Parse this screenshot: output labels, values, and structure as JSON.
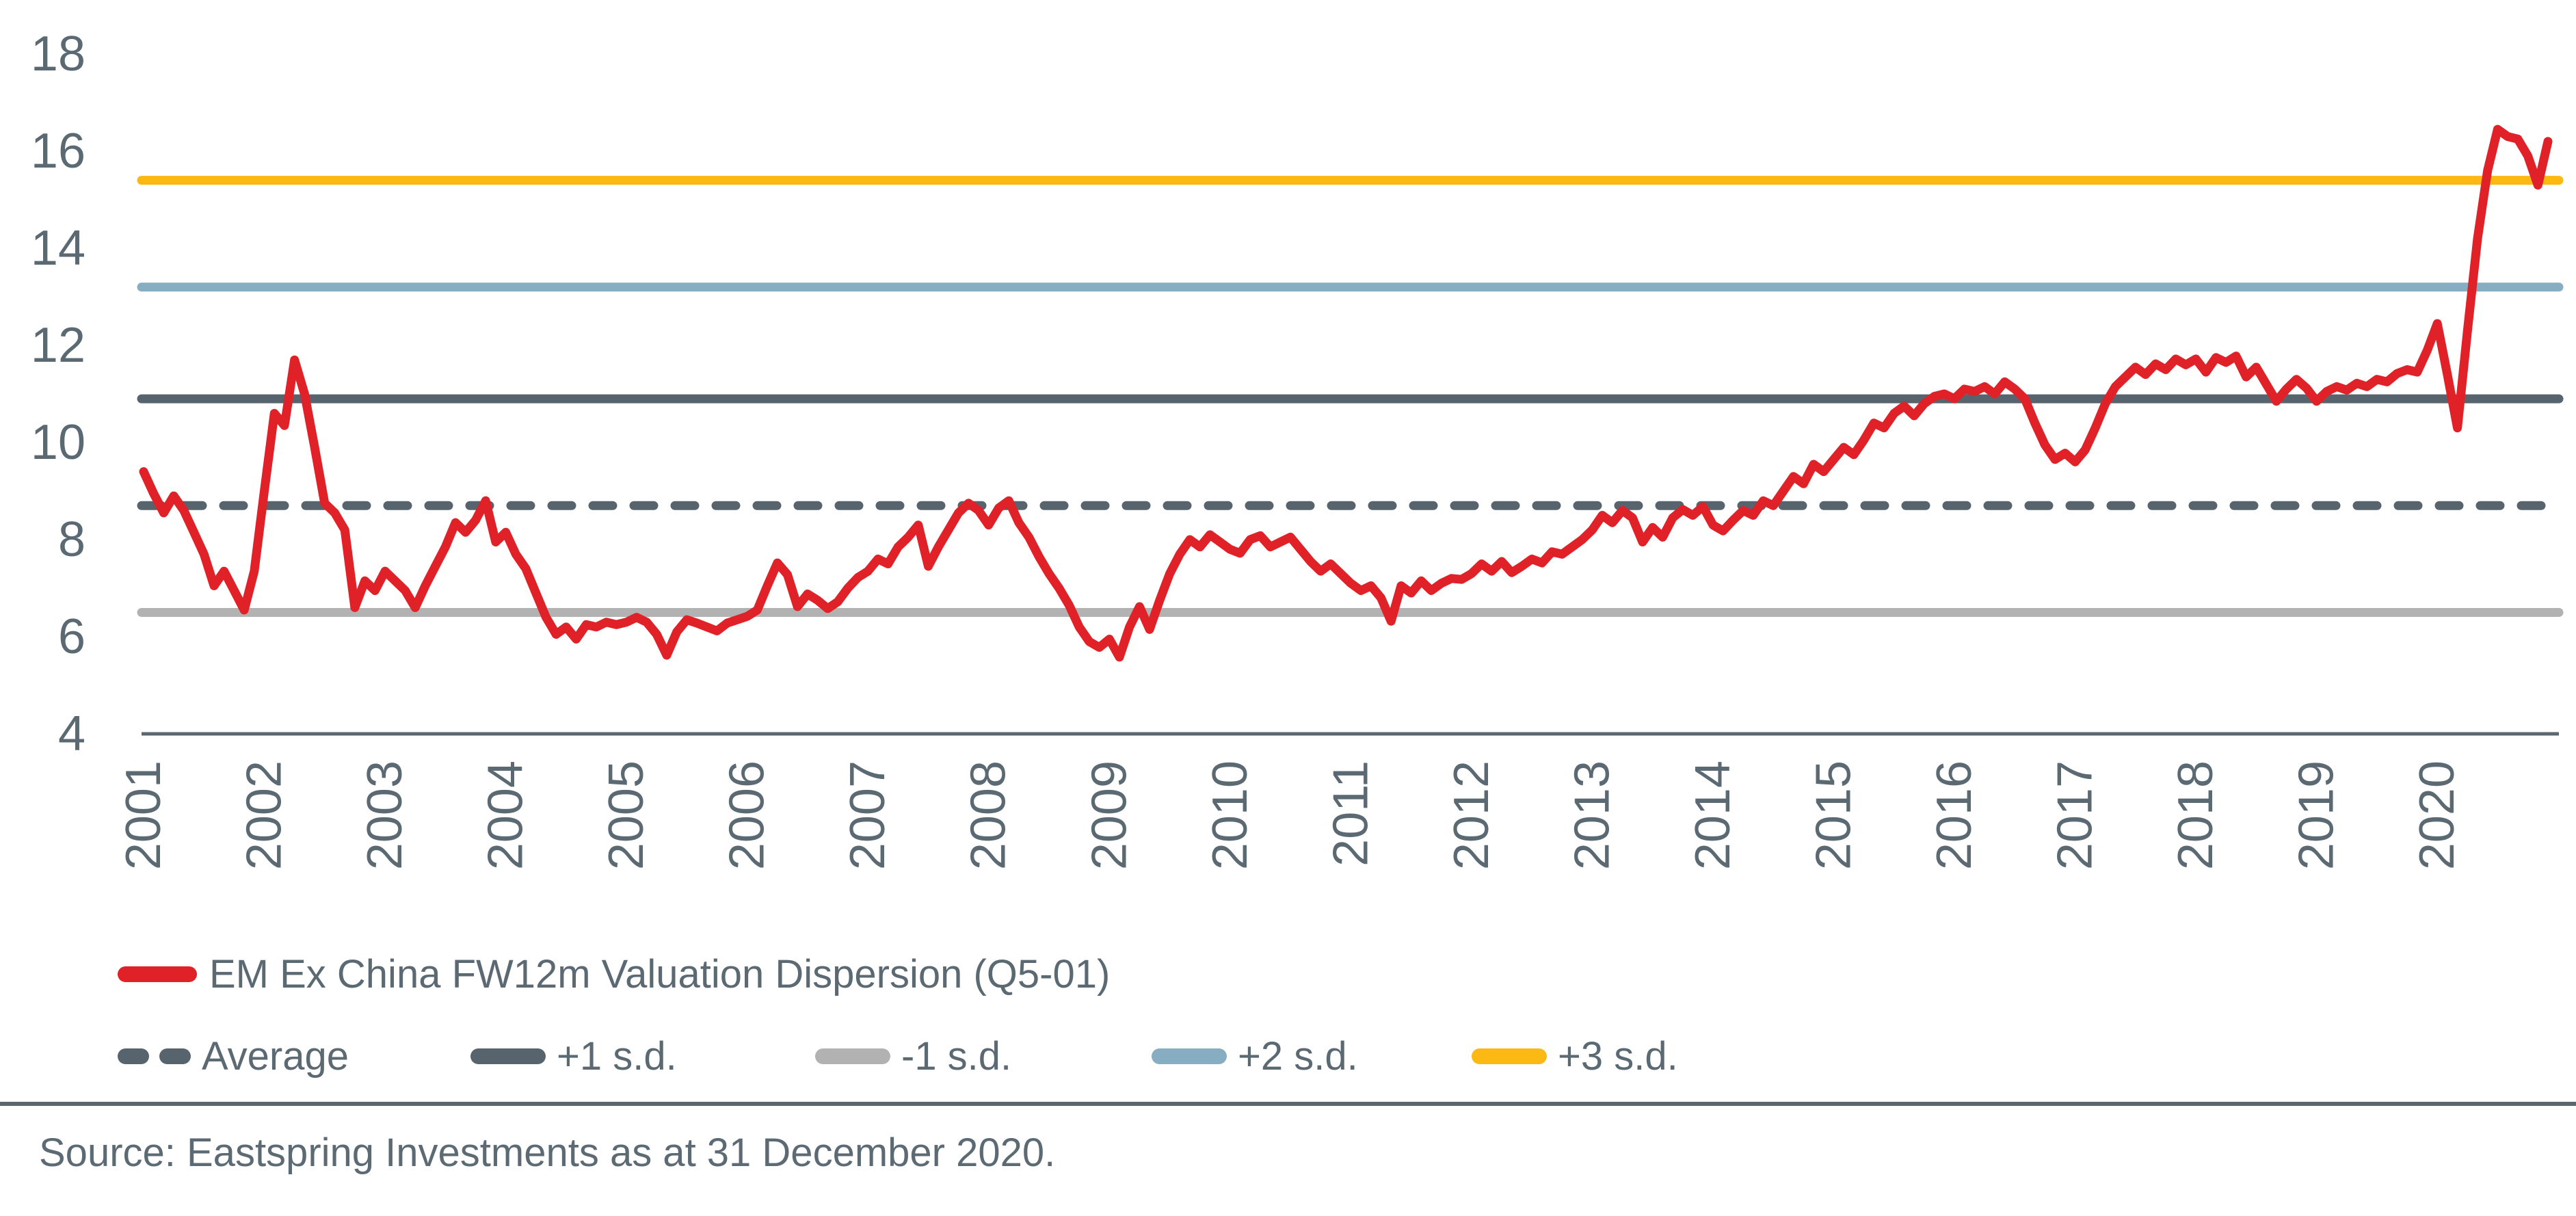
{
  "chart_data": {
    "type": "line",
    "series_name": "EM Ex China FW12m Valuation Dispersion (Q5-01)",
    "series_color": "#e02127",
    "axis_color": "#5a6771",
    "text_color": "#5b6973",
    "freq": "monthly",
    "x_start": "2001-01",
    "x_end": "2020-12",
    "ylim": [
      4,
      18
    ],
    "y_ticks": [
      18,
      16,
      14,
      12,
      10,
      8,
      6,
      4
    ],
    "x_labels": [
      "2001",
      "2002",
      "2003",
      "2004",
      "2005",
      "2006",
      "2007",
      "2008",
      "2009",
      "2010",
      "2011",
      "2012",
      "2013",
      "2014",
      "2015",
      "2016",
      "2017",
      "2018",
      "2019",
      "2020"
    ],
    "grid": "off",
    "legend_position": "bottom-left",
    "ref_lines": [
      {
        "id": "average",
        "label": "Average",
        "value": 8.7,
        "color": "#57646e",
        "style": "dashed"
      },
      {
        "id": "plus1",
        "label": "+1 s.d.",
        "value": 10.9,
        "color": "#57646e",
        "style": "solid"
      },
      {
        "id": "minus1",
        "label": "-1 s.d.",
        "value": 6.5,
        "color": "#b2b2b2",
        "style": "solid"
      },
      {
        "id": "plus2",
        "label": "+2 s.d.",
        "value": 13.2,
        "color": "#87adc2",
        "style": "solid"
      },
      {
        "id": "plus3",
        "label": "+3 s.d.",
        "value": 15.4,
        "color": "#fdb913",
        "style": "solid"
      }
    ],
    "values": [
      9.4,
      8.95,
      8.55,
      8.9,
      8.6,
      8.15,
      7.7,
      7.05,
      7.35,
      6.95,
      6.55,
      7.35,
      9.0,
      10.6,
      10.35,
      11.7,
      11.0,
      9.9,
      8.75,
      8.55,
      8.2,
      6.6,
      7.15,
      6.95,
      7.35,
      7.15,
      6.95,
      6.6,
      7.05,
      7.45,
      7.85,
      8.35,
      8.15,
      8.4,
      8.8,
      7.95,
      8.15,
      7.7,
      7.4,
      6.9,
      6.4,
      6.05,
      6.2,
      5.95,
      6.25,
      6.2,
      6.3,
      6.25,
      6.3,
      6.4,
      6.3,
      6.05,
      5.62,
      6.1,
      6.35,
      6.28,
      6.2,
      6.12,
      6.28,
      6.35,
      6.42,
      6.55,
      7.05,
      7.52,
      7.28,
      6.62,
      6.88,
      6.75,
      6.58,
      6.72,
      7.0,
      7.22,
      7.35,
      7.6,
      7.5,
      7.85,
      8.05,
      8.3,
      7.45,
      7.85,
      8.2,
      8.55,
      8.75,
      8.6,
      8.3,
      8.65,
      8.8,
      8.35,
      8.05,
      7.65,
      7.3,
      7.0,
      6.65,
      6.2,
      5.9,
      5.78,
      5.95,
      5.58,
      6.2,
      6.62,
      6.15,
      6.75,
      7.3,
      7.7,
      8.0,
      7.85,
      8.1,
      7.95,
      7.8,
      7.72,
      8.0,
      8.08,
      7.85,
      7.95,
      8.05,
      7.8,
      7.55,
      7.35,
      7.5,
      7.3,
      7.1,
      6.95,
      7.05,
      6.8,
      6.32,
      7.05,
      6.9,
      7.15,
      6.95,
      7.1,
      7.2,
      7.18,
      7.3,
      7.5,
      7.35,
      7.55,
      7.32,
      7.45,
      7.6,
      7.52,
      7.75,
      7.7,
      7.85,
      8.0,
      8.2,
      8.5,
      8.35,
      8.6,
      8.45,
      7.95,
      8.25,
      8.05,
      8.45,
      8.62,
      8.5,
      8.68,
      8.3,
      8.18,
      8.4,
      8.6,
      8.5,
      8.8,
      8.7,
      9.0,
      9.3,
      9.15,
      9.55,
      9.4,
      9.65,
      9.9,
      9.75,
      10.05,
      10.4,
      10.3,
      10.6,
      10.75,
      10.55,
      10.8,
      10.95,
      11.0,
      10.9,
      11.1,
      11.05,
      11.15,
      11.0,
      11.25,
      11.1,
      10.9,
      10.4,
      9.95,
      9.65,
      9.78,
      9.6,
      9.85,
      10.3,
      10.8,
      11.15,
      11.35,
      11.55,
      11.4,
      11.62,
      11.5,
      11.72,
      11.6,
      11.72,
      11.45,
      11.75,
      11.65,
      11.78,
      11.35,
      11.55,
      11.2,
      10.85,
      11.1,
      11.3,
      11.12,
      10.85,
      11.05,
      11.15,
      11.08,
      11.22,
      11.15,
      11.3,
      11.25,
      11.42,
      11.5,
      11.45,
      11.9,
      12.45,
      11.4,
      10.3,
      12.3,
      14.2,
      15.6,
      16.45,
      16.3,
      16.25,
      15.9,
      15.3,
      16.2
    ]
  },
  "legend": {
    "series_label": "EM Ex China FW12m Valuation Dispersion (Q5-01)",
    "items": [
      "Average",
      "+1 s.d.",
      "-1 s.d.",
      "+2 s.d.",
      "+3 s.d."
    ]
  },
  "footer": {
    "source": "Source: Eastspring Investments as at 31 December 2020."
  }
}
